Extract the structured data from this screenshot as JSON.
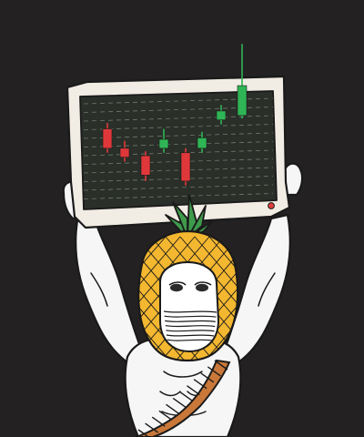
{
  "scene": {
    "background_color": "#232122",
    "outline_color": "#1a1a1a",
    "body_color": "#f6f6f6",
    "pineapple_color": "#f4b730",
    "crown_color": "#3f9a4c",
    "eye_mask_color": "#ffffff",
    "rope_color": "#c9783a"
  },
  "monitor": {
    "frame_color": "#f1ece4",
    "screen_color": "#2a2f29",
    "grid_color": "#6f7a6a",
    "led_color": "#e23c3c"
  },
  "chart_data": {
    "type": "candlestick",
    "title": "",
    "grid": true,
    "up_color": "#2fb555",
    "down_color": "#e0383a",
    "candles": [
      {
        "direction": "down",
        "open": 68,
        "close": 55,
        "high": 72,
        "low": 52
      },
      {
        "direction": "down",
        "open": 55,
        "close": 49,
        "high": 60,
        "low": 46
      },
      {
        "direction": "down",
        "open": 50,
        "close": 37,
        "high": 53,
        "low": 33
      },
      {
        "direction": "up",
        "open": 55,
        "close": 61,
        "high": 68,
        "low": 52
      },
      {
        "direction": "down",
        "open": 52,
        "close": 33,
        "high": 55,
        "low": 30
      },
      {
        "direction": "up",
        "open": 55,
        "close": 62,
        "high": 66,
        "low": 52
      },
      {
        "direction": "up",
        "open": 74,
        "close": 80,
        "high": 84,
        "low": 71
      },
      {
        "direction": "up",
        "open": 77,
        "close": 97,
        "high": 125,
        "low": 75
      }
    ],
    "ylim": [
      25,
      130
    ]
  }
}
